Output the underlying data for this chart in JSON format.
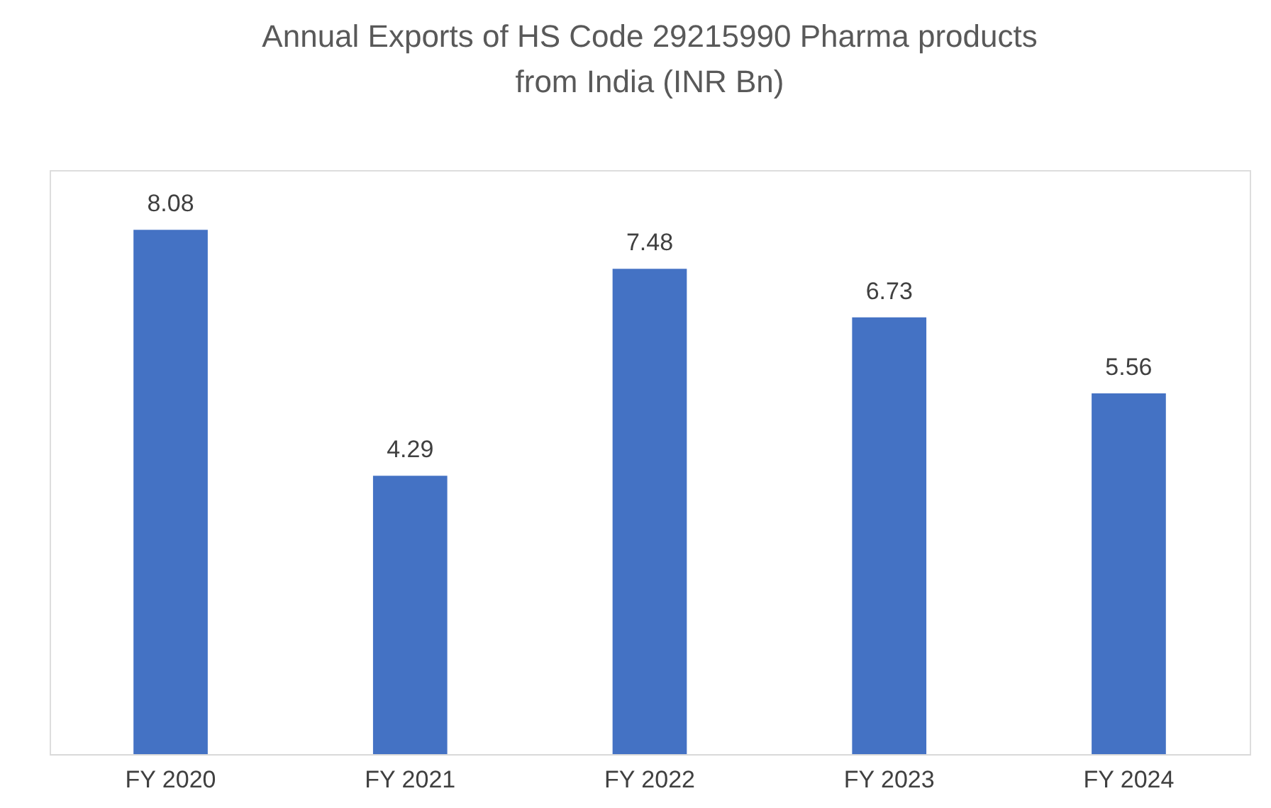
{
  "chart_data": {
    "type": "bar",
    "title": [
      "Annual Exports of HS Code 29215990 Pharma products",
      "from India (INR Bn)"
    ],
    "categories": [
      "FY 2020",
      "FY 2021",
      "FY 2022",
      "FY 2023",
      "FY 2024"
    ],
    "values": [
      8.08,
      4.29,
      7.48,
      6.73,
      5.56
    ],
    "color": "#4472c4",
    "data_labels": true
  }
}
